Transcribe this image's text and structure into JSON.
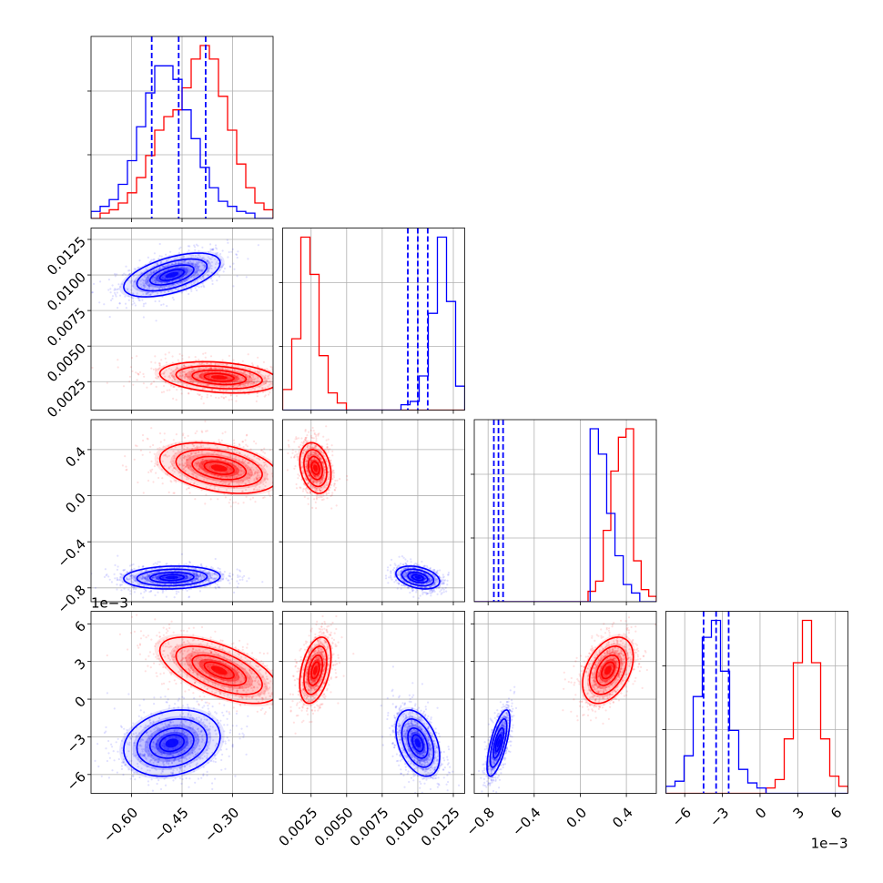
{
  "chart_data": {
    "type": "corner",
    "grid": true,
    "colors": {
      "series_a": "#0000ff",
      "series_b": "#ff0000"
    },
    "parameters": [
      {
        "range": [
          -0.72,
          -0.18
        ],
        "ticks": [
          -0.6,
          -0.45,
          -0.3
        ],
        "tick_labels": [
          "−0.60",
          "−0.45",
          "−0.30"
        ],
        "offset_label": ""
      },
      {
        "range": [
          0.0005,
          0.0133
        ],
        "ticks": [
          0.0025,
          0.005,
          0.0075,
          0.01,
          0.0125
        ],
        "tick_labels": [
          "0.0025",
          "0.0050",
          "0.0075",
          "0.0100",
          "0.0125"
        ],
        "offset_label": ""
      },
      {
        "range": [
          -0.92,
          0.66
        ],
        "ticks": [
          -0.8,
          -0.4,
          0.0,
          0.4
        ],
        "tick_labels": [
          "−0.8",
          "−0.4",
          "0.0",
          "0.4"
        ],
        "offset_label": ""
      },
      {
        "range": [
          -7.5,
          7.0
        ],
        "ticks": [
          -6,
          -3,
          0,
          3,
          6
        ],
        "tick_labels": [
          "−6",
          "−3",
          "0",
          "3",
          "6"
        ],
        "offset_label": "1e−3"
      }
    ],
    "series": [
      {
        "color": "#0000ff",
        "mean": [
          -0.48,
          0.01,
          -0.71,
          -3.5
        ],
        "sd": [
          0.065,
          0.0007,
          0.045,
          1.2
        ],
        "quantiles": [
          [
            -0.54,
            -0.46,
            -0.38
          ],
          [
            0.0093,
            0.01,
            0.0107
          ],
          [
            -0.75,
            -0.71,
            -0.67
          ],
          [
            -4.5,
            -3.5,
            -2.5
          ]
        ],
        "histograms": [
          [
            2,
            5,
            9,
            18,
            32,
            52,
            72,
            88,
            88,
            80,
            62,
            45,
            28,
            16,
            8,
            5,
            2,
            1,
            0,
            0
          ],
          [
            0,
            0,
            0,
            0,
            0,
            0,
            0,
            0,
            0,
            0,
            0,
            0,
            0,
            1,
            3,
            18,
            55,
            100,
            62,
            12
          ],
          [
            0,
            0,
            0,
            0,
            0,
            0,
            0,
            0,
            0,
            0,
            0,
            0,
            0,
            0,
            100,
            85,
            50,
            25,
            8,
            3,
            0,
            0
          ],
          [
            2,
            5,
            20,
            55,
            90,
            100,
            70,
            35,
            12,
            4,
            1,
            0,
            0,
            0,
            0,
            0,
            0,
            0,
            0,
            0
          ]
        ]
      },
      {
        "color": "#ff0000",
        "mean": [
          -0.34,
          0.0028,
          0.24,
          2.3
        ],
        "sd": [
          0.08,
          0.0005,
          0.1,
          1.2
        ],
        "quantiles": [],
        "histograms": [
          [
            0,
            1,
            3,
            7,
            13,
            22,
            35,
            50,
            58,
            62,
            75,
            92,
            100,
            92,
            70,
            50,
            30,
            16,
            7,
            3
          ],
          [
            10,
            40,
            100,
            78,
            30,
            8,
            2,
            0,
            0,
            0,
            0,
            0,
            0,
            0,
            0,
            0,
            0,
            0,
            0,
            0
          ],
          [
            0,
            0,
            0,
            0,
            0,
            0,
            0,
            0,
            0,
            0,
            0,
            0,
            0,
            0,
            0,
            4,
            10,
            40,
            75,
            95,
            100,
            22,
            5,
            1
          ],
          [
            0,
            0,
            0,
            0,
            0,
            0,
            0,
            0,
            0,
            0,
            0,
            1,
            6,
            30,
            75,
            100,
            75,
            30,
            8,
            2
          ]
        ]
      }
    ],
    "correlations": {
      "0-1": [
        0.55,
        -0.25
      ],
      "0-2": [
        0.1,
        -0.35
      ],
      "1-2": [
        -0.35,
        -0.25
      ],
      "0-3": [
        0.2,
        -0.6
      ],
      "1-3": [
        -0.4,
        0.4
      ],
      "2-3": [
        0.7,
        0.4
      ]
    }
  }
}
